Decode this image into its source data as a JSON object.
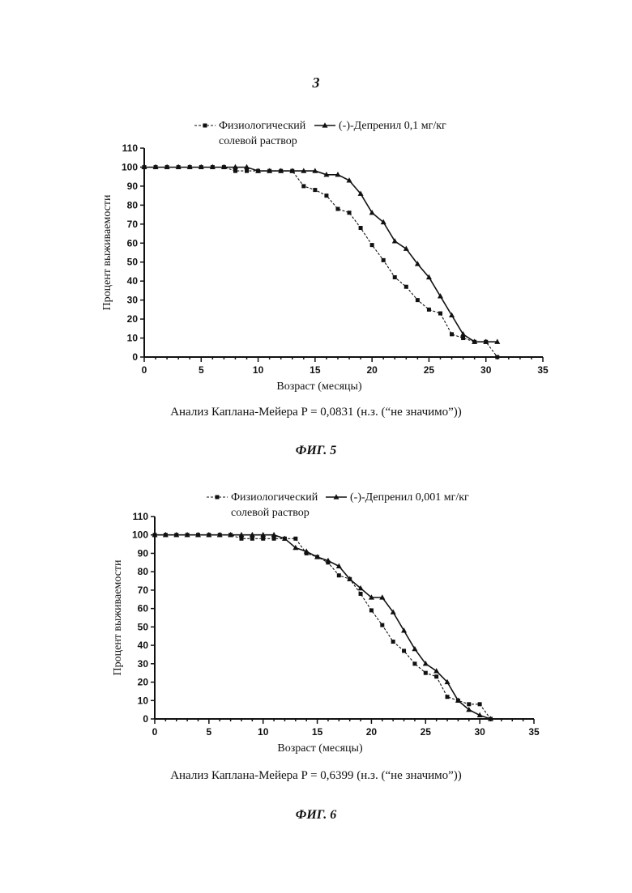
{
  "page_number": "3",
  "chart_data": [
    {
      "type": "line",
      "figure_label": "ФИГ. 5",
      "caption": "Анализ Каплана-Мейера P = 0,0831 (н.з. (“не значимо”))",
      "xlabel": "Возраст (месяцы)",
      "ylabel": "Процент выживаемости",
      "xlim": [
        0,
        35
      ],
      "ylim": [
        0,
        110
      ],
      "xticks": [
        0,
        5,
        10,
        15,
        20,
        25,
        30,
        35
      ],
      "yticks": [
        0,
        10,
        20,
        30,
        40,
        50,
        60,
        70,
        80,
        90,
        100,
        110
      ],
      "grid": false,
      "legend_position": "top",
      "series": [
        {
          "name": "Физиологический солевой раствор",
          "name_lines": [
            "Физиологический",
            "солевой раствор"
          ],
          "marker": "square",
          "line_style": "dashed",
          "color": "#111111",
          "x": [
            0,
            1,
            2,
            3,
            4,
            5,
            6,
            7,
            8,
            9,
            10,
            11,
            12,
            13,
            14,
            15,
            16,
            17,
            18,
            19,
            20,
            21,
            22,
            23,
            24,
            25,
            26,
            27,
            28,
            29,
            30,
            31
          ],
          "y": [
            100,
            100,
            100,
            100,
            100,
            100,
            100,
            100,
            98,
            98,
            98,
            98,
            98,
            98,
            90,
            88,
            85,
            78,
            76,
            68,
            59,
            51,
            42,
            37,
            30,
            25,
            23,
            12,
            10,
            8,
            8,
            0
          ]
        },
        {
          "name": "(-)-Депренил 0,1 мг/кг",
          "name_lines": [
            "(-)-Депренил 0,1 мг/кг"
          ],
          "marker": "triangle",
          "line_style": "solid",
          "color": "#111111",
          "x": [
            0,
            1,
            2,
            3,
            4,
            5,
            6,
            7,
            8,
            9,
            10,
            11,
            12,
            13,
            14,
            15,
            16,
            17,
            18,
            19,
            20,
            21,
            22,
            23,
            24,
            25,
            26,
            27,
            28,
            29,
            30,
            31
          ],
          "y": [
            100,
            100,
            100,
            100,
            100,
            100,
            100,
            100,
            100,
            100,
            98,
            98,
            98,
            98,
            98,
            98,
            96,
            96,
            93,
            86,
            76,
            71,
            61,
            57,
            49,
            42,
            32,
            22,
            12,
            8,
            8,
            8
          ]
        }
      ]
    },
    {
      "type": "line",
      "figure_label": "ФИГ. 6",
      "caption": "Анализ Каплана-Мейера P = 0,6399 (н.з. (“не значимо”))",
      "xlabel": "Возраст (месяцы)",
      "ylabel": "Процент выживаемости",
      "xlim": [
        0,
        35
      ],
      "ylim": [
        0,
        110
      ],
      "xticks": [
        0,
        5,
        10,
        15,
        20,
        25,
        30,
        35
      ],
      "yticks": [
        0,
        10,
        20,
        30,
        40,
        50,
        60,
        70,
        80,
        90,
        100,
        110
      ],
      "grid": false,
      "legend_position": "top",
      "series": [
        {
          "name": "Физиологический солевой раствор",
          "name_lines": [
            "Физиологический",
            "солевой раствор"
          ],
          "marker": "square",
          "line_style": "dashed",
          "color": "#111111",
          "x": [
            0,
            1,
            2,
            3,
            4,
            5,
            6,
            7,
            8,
            9,
            10,
            11,
            12,
            13,
            14,
            15,
            16,
            17,
            18,
            19,
            20,
            21,
            22,
            23,
            24,
            25,
            26,
            27,
            28,
            29,
            30,
            31
          ],
          "y": [
            100,
            100,
            100,
            100,
            100,
            100,
            100,
            100,
            98,
            98,
            98,
            98,
            98,
            98,
            90,
            88,
            85,
            78,
            76,
            68,
            59,
            51,
            42,
            37,
            30,
            25,
            23,
            12,
            10,
            8,
            8,
            0
          ]
        },
        {
          "name": "(-)-Депренил 0,001 мг/кг",
          "name_lines": [
            "(-)-Депренил 0,001 мг/кг"
          ],
          "marker": "triangle",
          "line_style": "solid",
          "color": "#111111",
          "x": [
            0,
            1,
            2,
            3,
            4,
            5,
            6,
            7,
            8,
            9,
            10,
            11,
            12,
            13,
            14,
            15,
            16,
            17,
            18,
            19,
            20,
            21,
            22,
            23,
            24,
            25,
            26,
            27,
            28,
            29,
            30,
            31
          ],
          "y": [
            100,
            100,
            100,
            100,
            100,
            100,
            100,
            100,
            100,
            100,
            100,
            100,
            98,
            93,
            91,
            88,
            86,
            83,
            76,
            71,
            66,
            66,
            58,
            48,
            38,
            30,
            26,
            20,
            10,
            5,
            2,
            0
          ]
        }
      ]
    }
  ]
}
